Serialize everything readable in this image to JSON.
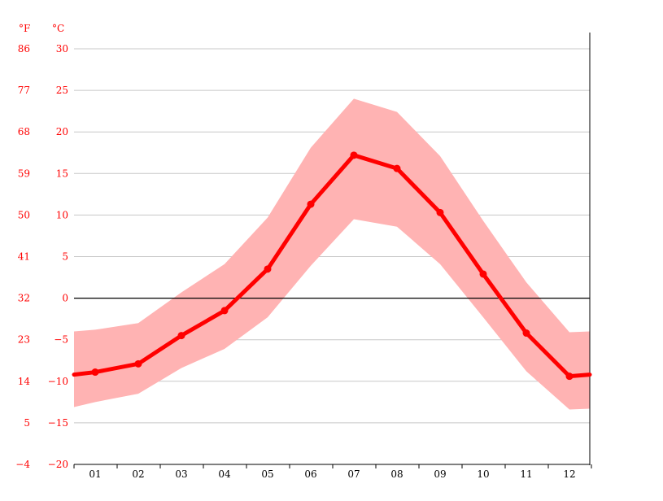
{
  "chart_data": {
    "type": "line",
    "title": "",
    "xlabel": "",
    "ylabel": "",
    "unit_f": "°F",
    "unit_c": "°C",
    "categories": [
      "01",
      "02",
      "03",
      "04",
      "05",
      "06",
      "07",
      "08",
      "09",
      "10",
      "11",
      "12"
    ],
    "series": [
      {
        "name": "",
        "kind": "average",
        "values": [
          -8.9,
          -7.9,
          -4.5,
          -1.5,
          3.5,
          11.3,
          17.2,
          15.6,
          10.3,
          2.9,
          -4.2,
          -9.4
        ],
        "color": "#ff0000"
      },
      {
        "name": "",
        "kind": "range",
        "upper": [
          -3.8,
          -3.0,
          0.7,
          4.1,
          9.7,
          18.1,
          24.0,
          22.4,
          17.1,
          9.3,
          1.9,
          -4.1
        ],
        "lower": [
          -12.5,
          -11.5,
          -8.4,
          -6.1,
          -2.3,
          3.9,
          9.5,
          8.6,
          4.1,
          -2.3,
          -8.8,
          -13.4
        ],
        "color": "#ffb3b3"
      }
    ],
    "ylim": [
      -20,
      30
    ],
    "y_ticks_c": [
      "30",
      "25",
      "20",
      "15",
      "10",
      "5",
      "0",
      "−5",
      "−10",
      "−15",
      "−20"
    ],
    "y_ticks_f": [
      "86",
      "77",
      "68",
      "59",
      "50",
      "41",
      "32",
      "23",
      "14",
      "5",
      "−4"
    ],
    "grid": true,
    "zero_line": true
  }
}
